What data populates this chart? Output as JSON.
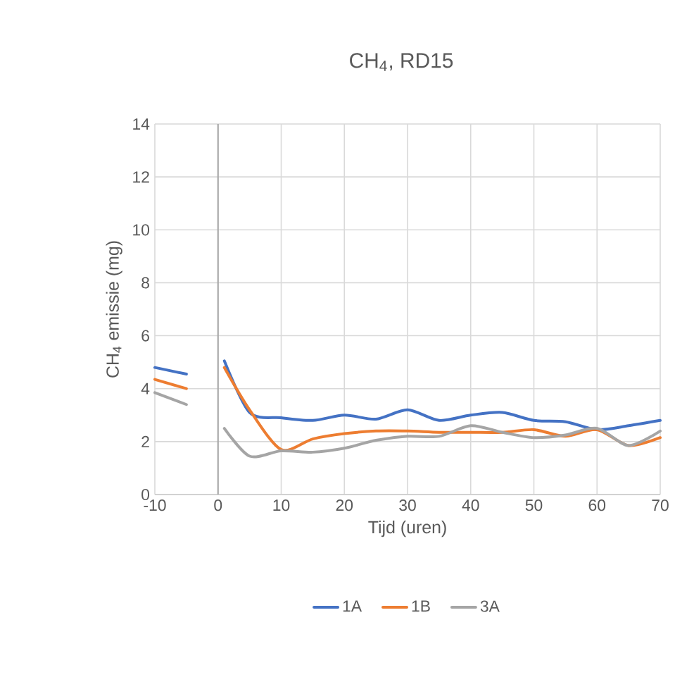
{
  "chart_data": {
    "type": "line",
    "title": "CH$_{4}$, RD15",
    "xlabel": "Tijd (uren)",
    "ylabel": "CH$_{4}$ emissie (mg)",
    "xlim": [
      -10,
      70
    ],
    "xticks": [
      -10,
      0,
      10,
      20,
      30,
      40,
      50,
      60,
      70
    ],
    "ylim": [
      0,
      14
    ],
    "yticks": [
      0,
      2,
      4,
      6,
      8,
      10,
      12,
      14
    ],
    "grid": true,
    "legend": "bottom",
    "marker": "none",
    "line_style": "solid",
    "ref_lines": [
      {
        "axis": "x",
        "value": 0,
        "color": "#a6a6a6"
      }
    ],
    "x": [
      -10,
      -5,
      0,
      1,
      5,
      10,
      15,
      20,
      25,
      30,
      35,
      40,
      45,
      50,
      55,
      60,
      65,
      70
    ],
    "series": [
      {
        "name": "1A",
        "color": "#4472c4",
        "values": [
          4.8,
          4.55,
          null,
          5.05,
          3.1,
          2.9,
          2.8,
          3.0,
          2.85,
          3.2,
          2.8,
          3.0,
          3.1,
          2.8,
          2.75,
          2.45,
          2.6,
          2.8
        ]
      },
      {
        "name": "1B",
        "color": "#ed7d31",
        "values": [
          4.35,
          4.0,
          null,
          4.8,
          3.2,
          1.7,
          2.1,
          2.3,
          2.4,
          2.4,
          2.35,
          2.35,
          2.35,
          2.45,
          2.2,
          2.45,
          1.85,
          2.15
        ]
      },
      {
        "name": "3A",
        "color": "#a5a5a5",
        "values": [
          3.85,
          3.4,
          null,
          2.5,
          1.45,
          1.65,
          1.6,
          1.75,
          2.05,
          2.2,
          2.2,
          2.6,
          2.35,
          2.15,
          2.25,
          2.5,
          1.85,
          2.4
        ]
      }
    ]
  }
}
